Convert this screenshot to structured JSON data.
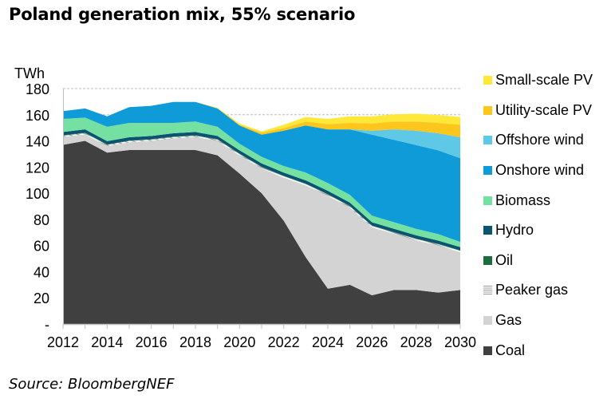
{
  "title": "Poland generation mix, 55% scenario",
  "source": "Source: BloombergNEF",
  "chart_data": {
    "type": "area",
    "stacked": true,
    "title": "Poland generation mix, 55% scenario",
    "xlabel": "",
    "ylabel": "TWh",
    "ylim": [
      0,
      180
    ],
    "xlim": [
      2012,
      2030
    ],
    "y_ticks": [
      0,
      20,
      40,
      60,
      80,
      100,
      120,
      140,
      160,
      180
    ],
    "y_tick_labels": [
      "-",
      "20",
      "40",
      "60",
      "80",
      "100",
      "120",
      "140",
      "160",
      "180"
    ],
    "x_tick_labels": [
      "2012",
      "2014",
      "2016",
      "2018",
      "2020",
      "2022",
      "2024",
      "2026",
      "2028",
      "2030"
    ],
    "gridlines": [
      160,
      180
    ],
    "legend_position": "right",
    "x": [
      2012,
      2013,
      2014,
      2015,
      2016,
      2017,
      2018,
      2019,
      2020,
      2021,
      2022,
      2023,
      2024,
      2025,
      2026,
      2027,
      2028,
      2029,
      2030
    ],
    "series": [
      {
        "name": "Coal",
        "color": "#404040",
        "pattern": "solid",
        "values": [
          137,
          140,
          131,
          133,
          133,
          133,
          133,
          129,
          115,
          100,
          79,
          51,
          27,
          30,
          22,
          26,
          26,
          24,
          26
        ]
      },
      {
        "name": "Gas",
        "color": "#d3d3d3",
        "pattern": "solid",
        "values": [
          6,
          5,
          5,
          6,
          7,
          9,
          10,
          11,
          14,
          19,
          33,
          55,
          71,
          59,
          52,
          43,
          38,
          36,
          29
        ]
      },
      {
        "name": "Peaker gas",
        "color": "#bfbfbf",
        "pattern": "hatched",
        "values": [
          1,
          1,
          1,
          1,
          1,
          1,
          1,
          1,
          1,
          1,
          1,
          1,
          1,
          1,
          1,
          1,
          1,
          1,
          1
        ]
      },
      {
        "name": "Oil",
        "color": "#1b6e3a",
        "pattern": "solid",
        "values": [
          0.3,
          0.3,
          0.3,
          0.3,
          0.3,
          0.3,
          0.3,
          0.3,
          0.3,
          0.3,
          0.3,
          0.3,
          0.3,
          0.3,
          0.3,
          0.3,
          0.3,
          0.3,
          0.3
        ]
      },
      {
        "name": "Hydro",
        "color": "#0a5371",
        "pattern": "solid",
        "values": [
          2.5,
          2.5,
          2.5,
          2.5,
          2.5,
          2.5,
          2.5,
          2.5,
          2.5,
          2.5,
          2.5,
          2.5,
          2.5,
          2.5,
          2.5,
          2.5,
          2.5,
          2.5,
          2.5
        ]
      },
      {
        "name": "Biomass",
        "color": "#74e0a2",
        "pattern": "solid",
        "values": [
          10,
          9,
          11,
          11,
          10,
          8,
          8,
          7,
          5,
          5,
          5,
          6,
          6,
          6,
          5,
          5,
          5,
          5,
          4
        ]
      },
      {
        "name": "Onshore wind",
        "color": "#0f9bd7",
        "pattern": "solid",
        "values": [
          6,
          7,
          8,
          12,
          13,
          16,
          15,
          14,
          14,
          17,
          27,
          36,
          41,
          50,
          62,
          63,
          64,
          64,
          64
        ]
      },
      {
        "name": "Offshore wind",
        "color": "#5fc8e6",
        "pattern": "solid",
        "values": [
          0,
          0,
          0,
          0,
          0,
          0,
          0,
          0,
          0,
          0,
          0,
          0,
          0,
          0,
          3,
          8,
          11,
          13,
          16
        ]
      },
      {
        "name": "Utility-scale PV",
        "color": "#fdc61c",
        "pattern": "solid",
        "values": [
          0,
          0,
          0,
          0,
          0,
          0,
          0,
          0,
          0.5,
          1.5,
          2,
          3,
          4,
          5,
          5.5,
          6,
          7,
          8,
          9.5
        ]
      },
      {
        "name": "Small-scale PV",
        "color": "#ffe838",
        "pattern": "solid",
        "values": [
          0,
          0,
          0,
          0,
          0,
          0,
          0,
          0.5,
          1,
          1,
          2.5,
          3.5,
          4,
          5,
          5.5,
          5.5,
          6,
          6,
          6
        ]
      }
    ]
  }
}
